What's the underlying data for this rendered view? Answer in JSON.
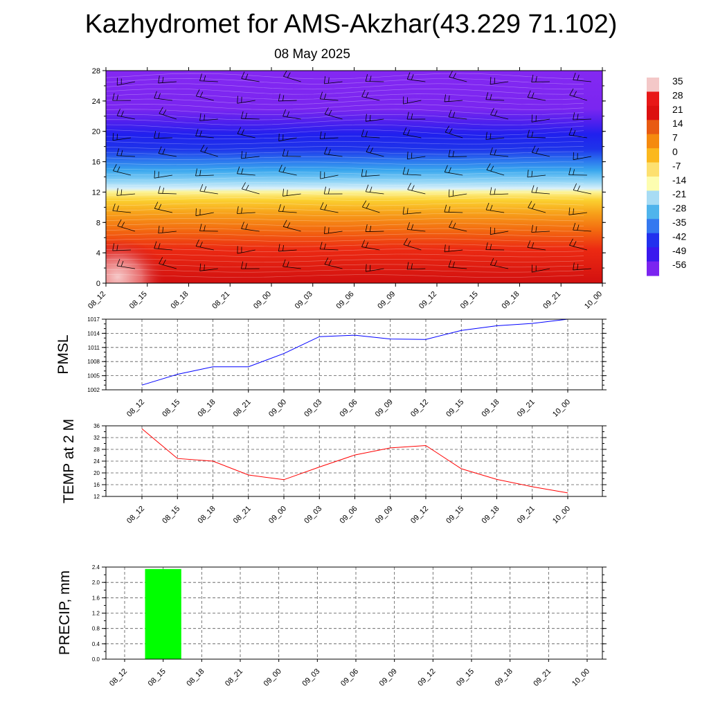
{
  "title": "Kazhydromet for AMS-Akzhar(43.229 71.102)",
  "subtitle": "08 May 2025",
  "time_labels": [
    "08_12",
    "08_15",
    "08_18",
    "08_21",
    "09_00",
    "09_03",
    "09_06",
    "09_09",
    "09_12",
    "09_15",
    "09_18",
    "09_21",
    "10_00"
  ],
  "chart_data": [
    {
      "type": "heatmap",
      "xlabel": "",
      "ylabel": "",
      "x": [
        "08_12",
        "08_15",
        "08_18",
        "08_21",
        "09_00",
        "09_03",
        "09_06",
        "09_09",
        "09_12",
        "09_15",
        "09_18",
        "09_21",
        "10_00"
      ],
      "ylim": [
        0,
        28
      ],
      "yticks": [
        0,
        4,
        8,
        12,
        16,
        20,
        24,
        28
      ],
      "colorbar": {
        "labels": [
          "35",
          "28",
          "21",
          "14",
          "7",
          "0",
          "-7",
          "-14",
          "-21",
          "-28",
          "-35",
          "-42",
          "-49",
          "-56"
        ],
        "colors": [
          "#f4c8c8",
          "#e81818",
          "#dc1010",
          "#e85a12",
          "#f58a0e",
          "#fbb81e",
          "#fde070",
          "#fdfdb0",
          "#a8dcf4",
          "#4fb4ec",
          "#3478f0",
          "#2230ee",
          "#3a18ee",
          "#7b24f0"
        ]
      },
      "layers": "temperature contours with wind barbs"
    },
    {
      "type": "line",
      "ylabel": "PMSL",
      "x": [
        "08_12",
        "08_15",
        "08_18",
        "08_21",
        "09_00",
        "09_03",
        "09_06",
        "09_09",
        "09_12",
        "09_15",
        "09_18",
        "09_21",
        "10_00"
      ],
      "values": [
        1003,
        1005.3,
        1006.9,
        1006.9,
        1009.7,
        1013.3,
        1013.6,
        1012.8,
        1012.7,
        1014.6,
        1015.6,
        1016.1,
        1017
      ],
      "ylim": [
        1002,
        1017
      ],
      "yticks": [
        1002,
        1005,
        1008,
        1011,
        1014,
        1017
      ],
      "color": "#0000ff"
    },
    {
      "type": "line",
      "ylabel": "TEMP at 2 M",
      "x": [
        "08_12",
        "08_15",
        "08_18",
        "08_21",
        "09_00",
        "09_03",
        "09_06",
        "09_09",
        "09_12",
        "09_15",
        "09_18",
        "09_21",
        "10_00"
      ],
      "values": [
        35,
        24.9,
        24,
        19.3,
        17.7,
        22,
        26.1,
        28.5,
        29.3,
        21.4,
        17.8,
        15.3,
        13.2
      ],
      "ylim": [
        12,
        36
      ],
      "yticks": [
        12,
        16,
        20,
        24,
        28,
        32,
        36
      ],
      "color": "#ff0000"
    },
    {
      "type": "bar",
      "ylabel": "PRECIP, mm",
      "x": [
        "08_12",
        "08_15",
        "08_18",
        "08_21",
        "09_00",
        "09_03",
        "09_06",
        "09_09",
        "09_12",
        "09_15",
        "09_18",
        "09_21",
        "10_00"
      ],
      "values": [
        0,
        2.35,
        0,
        0,
        0,
        0,
        0,
        0,
        0,
        0,
        0,
        0,
        0
      ],
      "ylim": [
        0,
        2.4
      ],
      "yticks": [
        "0.0",
        "0.4",
        "0.8",
        "1.2",
        "1.6",
        "2.0",
        "2.4"
      ],
      "color": "#00ff00"
    }
  ]
}
